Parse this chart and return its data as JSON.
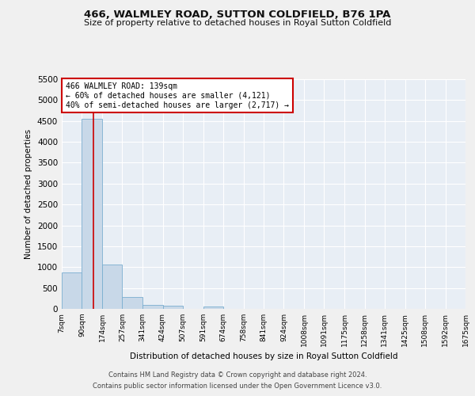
{
  "title": "466, WALMLEY ROAD, SUTTON COLDFIELD, B76 1PA",
  "subtitle": "Size of property relative to detached houses in Royal Sutton Coldfield",
  "xlabel": "Distribution of detached houses by size in Royal Sutton Coldfield",
  "ylabel": "Number of detached properties",
  "bar_color": "#c8d8e8",
  "bar_edge_color": "#7aaed0",
  "background_color": "#e8eef5",
  "grid_color": "#ffffff",
  "annotation_line_color": "#cc0000",
  "annotation_box_text": [
    "466 WALMLEY ROAD: 139sqm",
    "← 60% of detached houses are smaller (4,121)",
    "40% of semi-detached houses are larger (2,717) →"
  ],
  "property_size_sqm": 139,
  "bin_edges": [
    7,
    90,
    174,
    257,
    341,
    424,
    507,
    591,
    674,
    758,
    841,
    924,
    1008,
    1091,
    1175,
    1258,
    1341,
    1425,
    1508,
    1592,
    1675
  ],
  "bin_labels": [
    "7sqm",
    "90sqm",
    "174sqm",
    "257sqm",
    "341sqm",
    "424sqm",
    "507sqm",
    "591sqm",
    "674sqm",
    "758sqm",
    "841sqm",
    "924sqm",
    "1008sqm",
    "1091sqm",
    "1175sqm",
    "1258sqm",
    "1341sqm",
    "1425sqm",
    "1508sqm",
    "1592sqm",
    "1675sqm"
  ],
  "bar_heights": [
    880,
    4550,
    1060,
    280,
    90,
    80,
    0,
    60,
    0,
    0,
    0,
    0,
    0,
    0,
    0,
    0,
    0,
    0,
    0,
    0
  ],
  "ylim": [
    0,
    5500
  ],
  "yticks": [
    0,
    500,
    1000,
    1500,
    2000,
    2500,
    3000,
    3500,
    4000,
    4500,
    5000,
    5500
  ],
  "footnote1": "Contains HM Land Registry data © Crown copyright and database right 2024.",
  "footnote2": "Contains public sector information licensed under the Open Government Licence v3.0.",
  "annotation_box_color": "#ffffff",
  "annotation_box_edge_color": "#cc0000",
  "fig_bg": "#f0f0f0"
}
